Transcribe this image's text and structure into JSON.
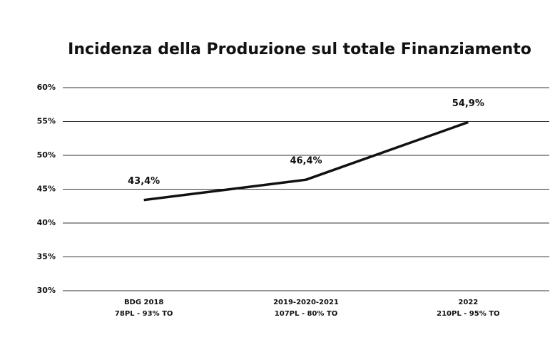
{
  "chart_data": {
    "type": "line",
    "title": "Incidenza della Produzione sul totale Finanziamento",
    "categories": [
      [
        "BDG 2018",
        "78PL - 93% TO"
      ],
      [
        "2019-2020-2021",
        "107PL - 80% TO"
      ],
      [
        "2022",
        "210PL - 95% TO"
      ]
    ],
    "series": [
      {
        "color": "#111111",
        "values": [
          43.4,
          46.4,
          54.9
        ],
        "value_labels": [
          "43,4%",
          "46,4%",
          "54,9%"
        ]
      }
    ],
    "ylim": [
      30,
      60
    ],
    "yticks": [
      {
        "value": 30,
        "label": "30%"
      },
      {
        "value": 35,
        "label": "35%"
      },
      {
        "value": 40,
        "label": "40%"
      },
      {
        "value": 45,
        "label": "45%"
      },
      {
        "value": 50,
        "label": "50%"
      },
      {
        "value": 55,
        "label": "55%"
      },
      {
        "value": 60,
        "label": "60%"
      }
    ],
    "grid": true
  }
}
